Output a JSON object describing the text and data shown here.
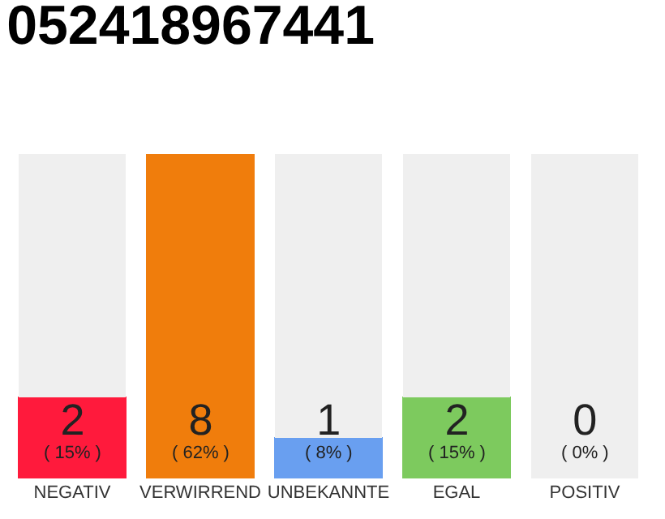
{
  "chart_data": {
    "type": "bar",
    "title": "052418967441",
    "categories": [
      "NEGATIV",
      "VERWIRREND",
      "UNBEKANNTE",
      "EGAL",
      "POSITIV"
    ],
    "stacked": true,
    "series": [
      {
        "values": [
          2,
          8,
          1,
          2,
          0
        ],
        "colors": [
          "#ff1a3c",
          "#f07d0c",
          "#699ff0",
          "#7dca5e",
          "#1ea64a"
        ],
        "value_labels": [
          "2\n( 15% )",
          "8\n( 62% )",
          "1\n( 8% )",
          "2\n( 15% )",
          "0\n( 0% )"
        ]
      },
      {
        "values": [
          6,
          0,
          7,
          6,
          8
        ],
        "color": "#efefef"
      }
    ]
  }
}
